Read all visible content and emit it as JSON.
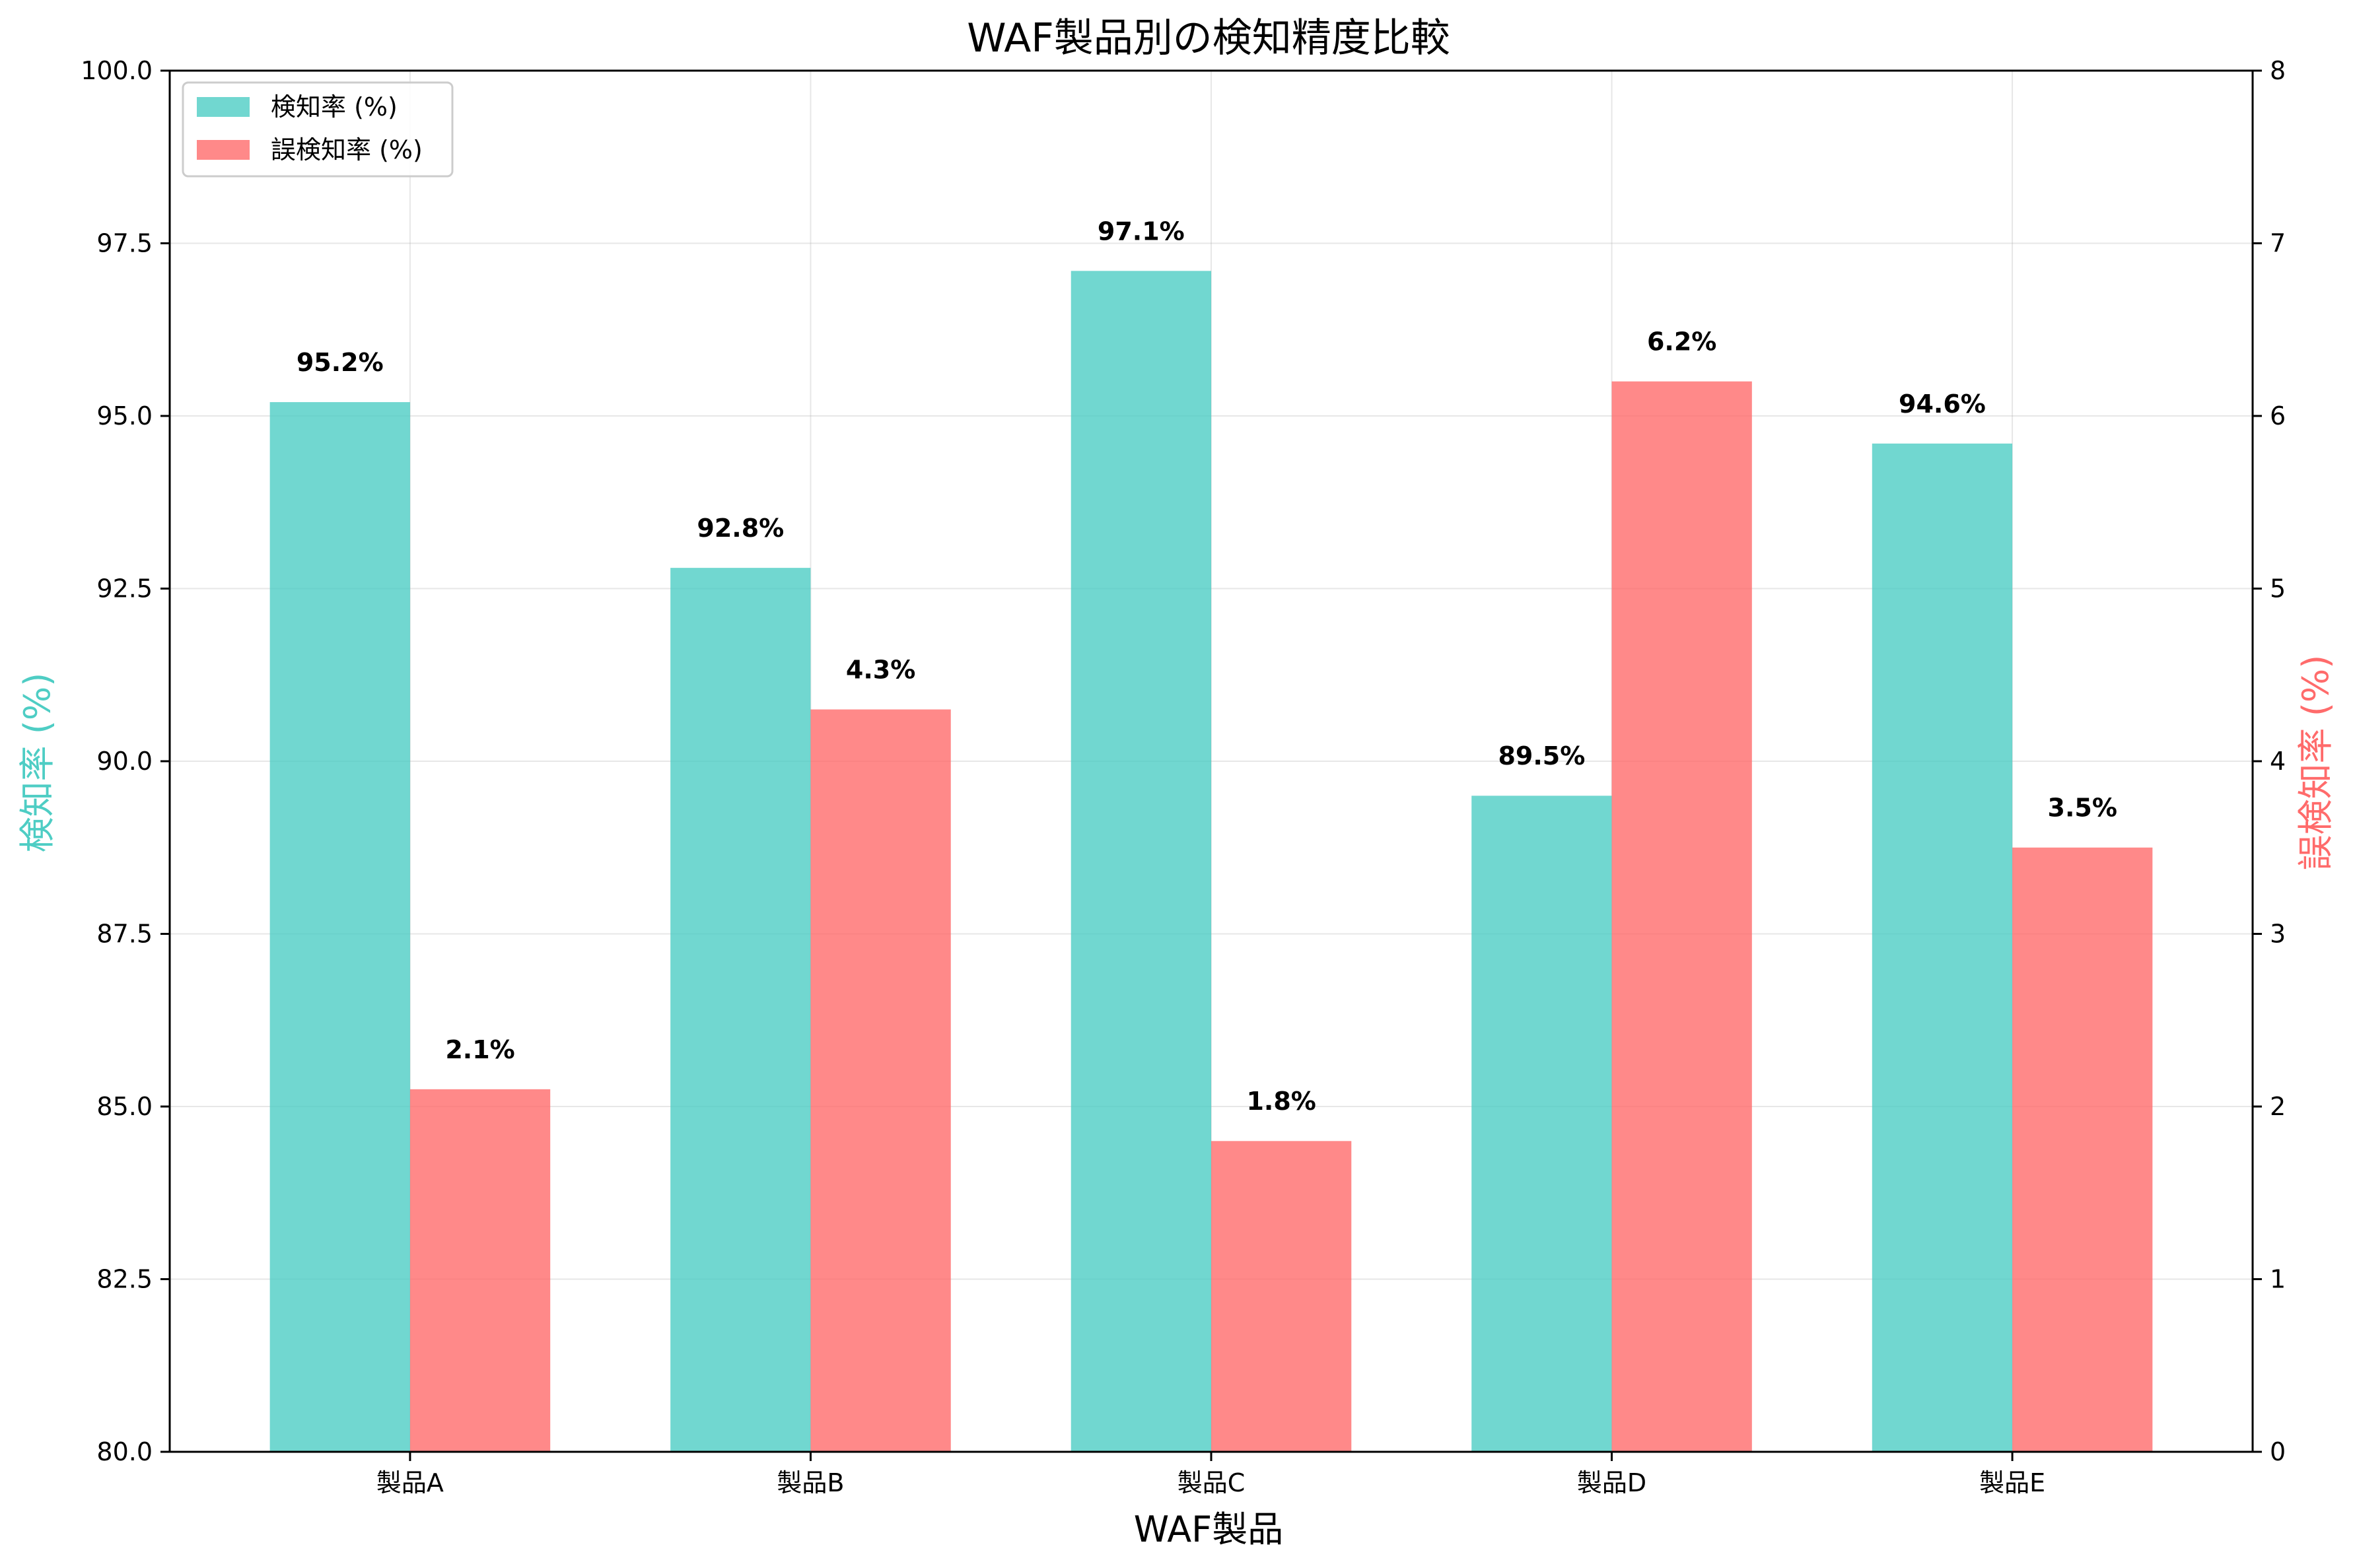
{
  "chart_data": {
    "type": "bar",
    "title": "WAF製品別の検知精度比較",
    "xlabel": "WAF製品",
    "ylabel_left": "検知率 (%)",
    "ylabel_right": "誤検知率 (%)",
    "categories": [
      "製品A",
      "製品B",
      "製品C",
      "製品D",
      "製品E"
    ],
    "series": [
      {
        "name": "検知率 (%)",
        "axis": "left",
        "color": "#4ecdc4",
        "values": [
          95.2,
          92.8,
          97.1,
          89.5,
          94.6
        ],
        "labels": [
          "95.2%",
          "92.8%",
          "97.1%",
          "89.5%",
          "94.6%"
        ]
      },
      {
        "name": "誤検知率 (%)",
        "axis": "right",
        "color": "#ff6b6b",
        "values": [
          2.1,
          4.3,
          1.8,
          6.2,
          3.5
        ],
        "labels": [
          "2.1%",
          "4.3%",
          "1.8%",
          "6.2%",
          "3.5%"
        ]
      }
    ],
    "ylim_left": [
      80,
      100
    ],
    "ylim_right": [
      0,
      8
    ],
    "yticks_left": [
      "80.0",
      "82.5",
      "85.0",
      "87.5",
      "90.0",
      "92.5",
      "95.0",
      "97.5",
      "100.0"
    ],
    "yticks_right": [
      "0",
      "1",
      "2",
      "3",
      "4",
      "5",
      "6",
      "7",
      "8"
    ],
    "grid": true,
    "legend_position": "top-left"
  }
}
